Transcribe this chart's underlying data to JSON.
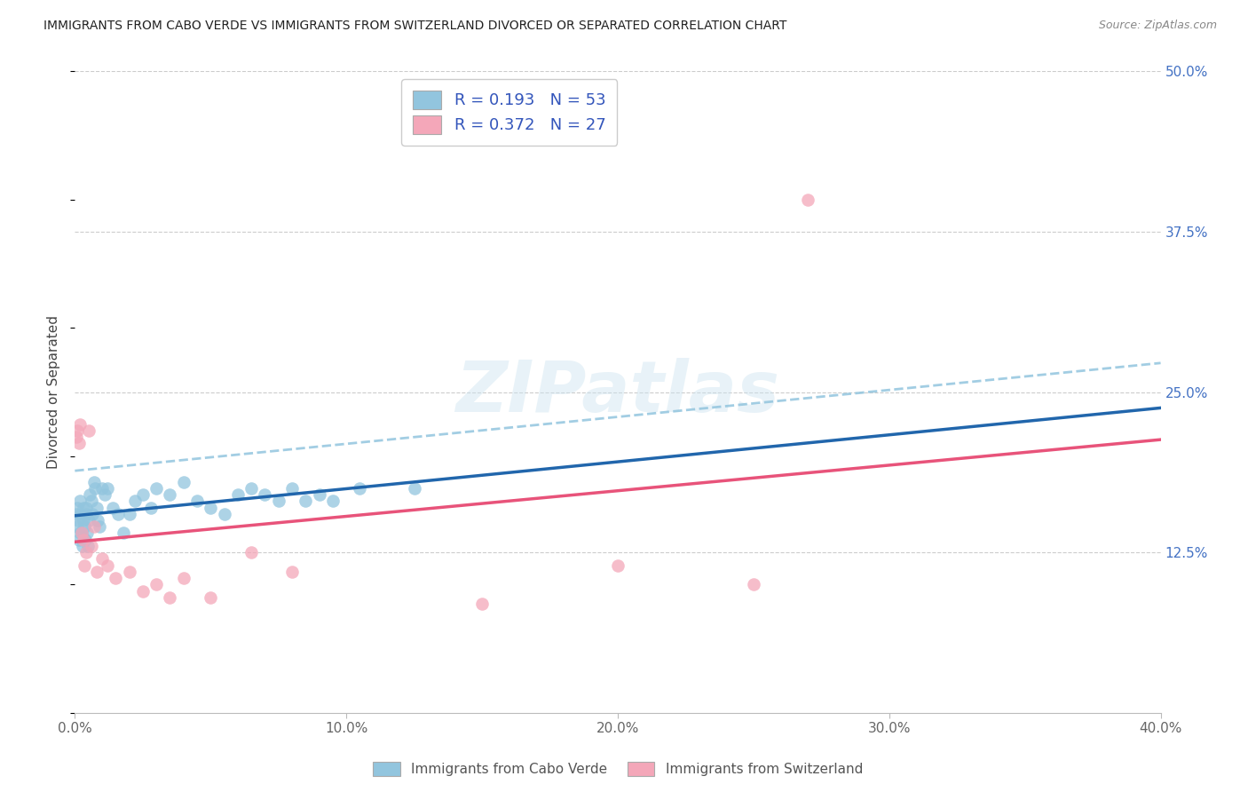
{
  "title": "IMMIGRANTS FROM CABO VERDE VS IMMIGRANTS FROM SWITZERLAND DIVORCED OR SEPARATED CORRELATION CHART",
  "source": "Source: ZipAtlas.com",
  "ylabel": "Divorced or Separated",
  "legend_label1": "Immigrants from Cabo Verde",
  "legend_label2": "Immigrants from Switzerland",
  "R1": "0.193",
  "N1": "53",
  "R2": "0.372",
  "N2": "27",
  "color_blue": "#92c5de",
  "color_pink": "#f4a7b9",
  "color_blue_line": "#2166ac",
  "color_pink_line": "#e8537a",
  "color_dashed": "#92c5de",
  "cabo_verde_x": [
    0.05,
    0.08,
    0.1,
    0.12,
    0.15,
    0.18,
    0.2,
    0.22,
    0.25,
    0.28,
    0.3,
    0.32,
    0.35,
    0.38,
    0.4,
    0.42,
    0.45,
    0.48,
    0.5,
    0.55,
    0.6,
    0.65,
    0.7,
    0.75,
    0.8,
    0.85,
    0.9,
    1.0,
    1.1,
    1.2,
    1.4,
    1.6,
    1.8,
    2.0,
    2.2,
    2.5,
    2.8,
    3.0,
    3.5,
    4.0,
    4.5,
    5.0,
    5.5,
    6.0,
    6.5,
    7.0,
    7.5,
    8.0,
    8.5,
    9.0,
    9.5,
    10.5,
    12.5
  ],
  "cabo_verde_y": [
    15.5,
    16.0,
    14.5,
    15.0,
    13.5,
    14.0,
    16.5,
    15.5,
    14.0,
    13.0,
    16.0,
    15.0,
    14.5,
    13.5,
    15.5,
    16.0,
    14.0,
    13.0,
    15.0,
    17.0,
    16.5,
    15.5,
    18.0,
    17.5,
    16.0,
    15.0,
    14.5,
    17.5,
    17.0,
    17.5,
    16.0,
    15.5,
    14.0,
    15.5,
    16.5,
    17.0,
    16.0,
    17.5,
    17.0,
    18.0,
    16.5,
    16.0,
    15.5,
    17.0,
    17.5,
    17.0,
    16.5,
    17.5,
    16.5,
    17.0,
    16.5,
    17.5,
    17.5
  ],
  "switzerland_x": [
    0.05,
    0.1,
    0.15,
    0.2,
    0.25,
    0.3,
    0.35,
    0.4,
    0.5,
    0.6,
    0.7,
    0.8,
    1.0,
    1.2,
    1.5,
    2.0,
    2.5,
    3.0,
    3.5,
    4.0,
    5.0,
    6.5,
    8.0,
    15.0,
    20.0,
    25.0,
    27.0
  ],
  "switzerland_y": [
    21.5,
    22.0,
    21.0,
    22.5,
    14.0,
    13.5,
    11.5,
    12.5,
    22.0,
    13.0,
    14.5,
    11.0,
    12.0,
    11.5,
    10.5,
    11.0,
    9.5,
    10.0,
    9.0,
    10.5,
    9.0,
    12.5,
    11.0,
    8.5,
    11.5,
    10.0,
    40.0
  ],
  "xlim": [
    0,
    40
  ],
  "ylim": [
    0,
    50
  ],
  "xticks": [
    0,
    10,
    20,
    30,
    40
  ],
  "xticklabels": [
    "0.0%",
    "10.0%",
    "20.0%",
    "30.0%",
    "40.0%"
  ],
  "ytick_vals": [
    12.5,
    25.0,
    37.5,
    50.0
  ],
  "yticklabels": [
    "12.5%",
    "25.0%",
    "37.5%",
    "50.0%"
  ],
  "grid_vals": [
    12.5,
    25.0,
    37.5,
    50.0
  ]
}
